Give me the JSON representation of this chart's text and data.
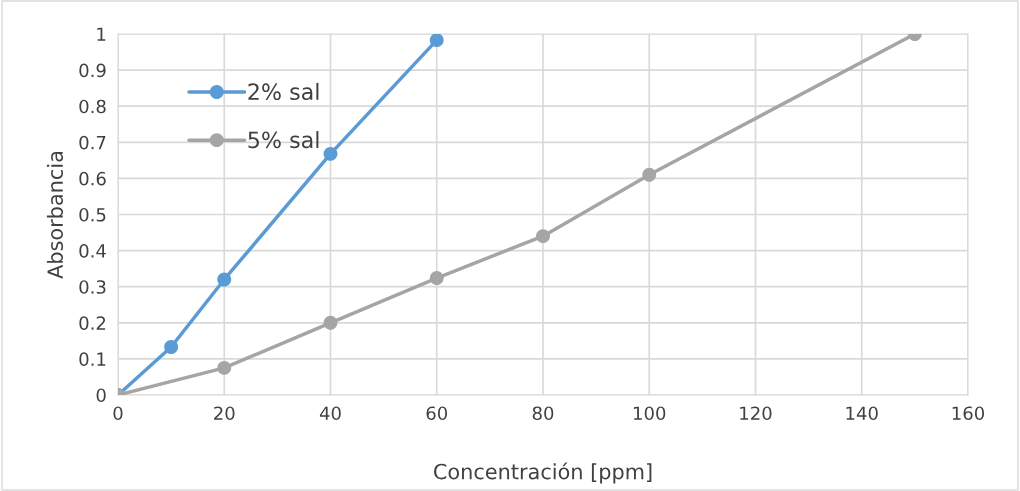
{
  "chart_data": {
    "type": "line",
    "xlabel": "Concentración [ppm]",
    "ylabel": "Absorbancia",
    "series": [
      {
        "name": "2% sal",
        "color": "#5b9bd5",
        "x": [
          0,
          10,
          20,
          40,
          60
        ],
        "values": [
          0,
          0.133,
          0.32,
          0.668,
          0.983
        ]
      },
      {
        "name": "5% sal",
        "color": "#a5a5a5",
        "x": [
          0,
          20,
          40,
          60,
          80,
          100,
          150
        ],
        "values": [
          0,
          0.075,
          0.2,
          0.324,
          0.44,
          0.61,
          1.0
        ]
      }
    ],
    "xlim": [
      0,
      160
    ],
    "xticks": [
      0,
      20,
      40,
      60,
      80,
      100,
      120,
      140,
      160
    ],
    "ylim": [
      0,
      1
    ],
    "yticks": [
      0,
      0.1,
      0.2,
      0.3,
      0.4,
      0.5,
      0.6,
      0.7,
      0.8,
      0.9,
      1
    ],
    "grid": true,
    "legend": "top left",
    "marker": "circle",
    "line_style": "solid"
  }
}
